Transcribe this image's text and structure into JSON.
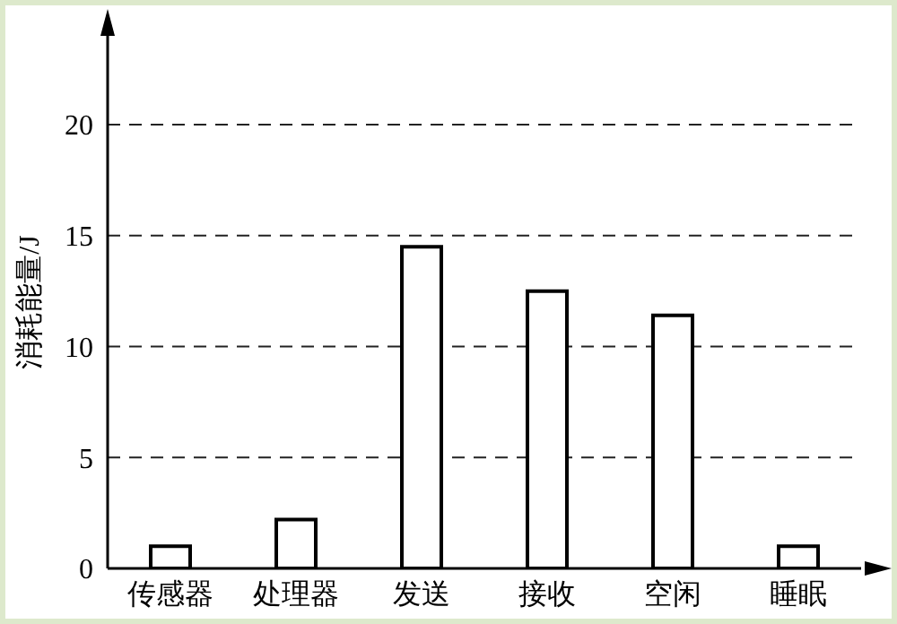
{
  "chart_data": {
    "type": "bar",
    "ylabel": "消耗能量/J",
    "categories": [
      "传感器",
      "处理器",
      "发送",
      "接收",
      "空闲",
      "睡眠"
    ],
    "values": [
      1.0,
      2.2,
      14.5,
      12.5,
      11.4,
      1.0
    ],
    "color": "#ffffff",
    "ylim": [
      0,
      24
    ],
    "yticks": [
      0,
      5,
      10,
      15,
      20
    ],
    "grid": "y"
  }
}
